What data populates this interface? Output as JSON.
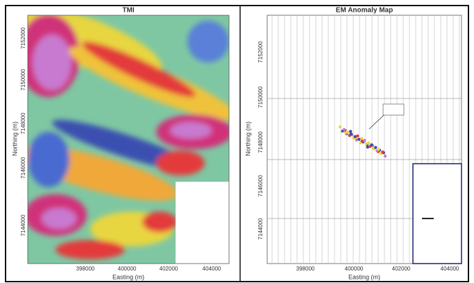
{
  "panels": [
    {
      "title": "TMI",
      "y_label": "Northing (m)",
      "x_label": "Easting (m)",
      "y_ticks": [
        "7152000",
        "7150000",
        "7148000",
        "7146000",
        "7144000"
      ],
      "x_ticks": [
        "398000",
        "400000",
        "402000",
        "404000"
      ]
    },
    {
      "title": "EM Anomaly Map",
      "y_label": "Northing (m)",
      "x_label": "Easting (m)",
      "y_ticks": [
        "7152000",
        "7150000",
        "7148000",
        "7146000",
        "7144000"
      ],
      "x_ticks": [
        "398000",
        "400000",
        "402000",
        "404000"
      ]
    }
  ]
}
